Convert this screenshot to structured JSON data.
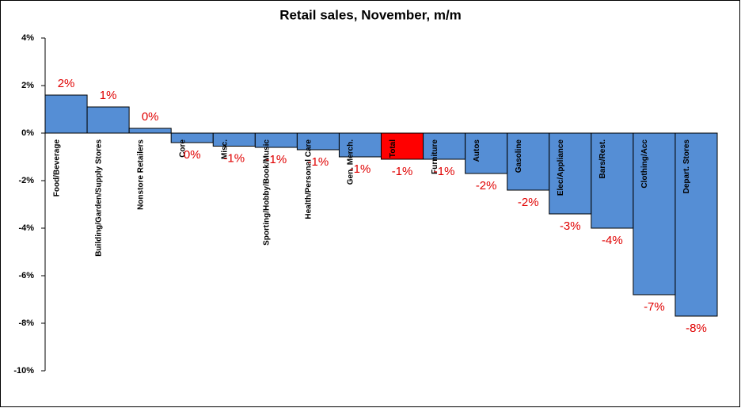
{
  "chart_data": {
    "type": "bar",
    "title": "Retail sales, November, m/m",
    "categories": [
      "Food/Beverage",
      "Building/Garden/Supply Stores",
      "Nonstore Retailers",
      "Core",
      "Misc.",
      "Sporting/Hobby/Book/Music",
      "Health/Personal Care",
      "Gen. Merch.",
      "Total",
      "Furniture",
      "Autos",
      "Gasoline",
      "Elec/Appliance",
      "Bars/Rest.",
      "Clothing/Acc",
      "Depart. Stores"
    ],
    "values": [
      1.6,
      1.1,
      0.2,
      -0.4,
      -0.55,
      -0.6,
      -0.7,
      -1.0,
      -1.1,
      -1.1,
      -1.7,
      -2.4,
      -3.4,
      -4.0,
      -6.8,
      -7.7
    ],
    "value_labels": [
      "2%",
      "1%",
      "0%",
      "0%",
      "-1%",
      "-1%",
      "-1%",
      "-1%",
      "-1%",
      "-1%",
      "-2%",
      "-2%",
      "-3%",
      "-4%",
      "-7%",
      "-8%"
    ],
    "colors": [
      "#558ed5",
      "#558ed5",
      "#558ed5",
      "#558ed5",
      "#558ed5",
      "#558ed5",
      "#558ed5",
      "#558ed5",
      "#ff0000",
      "#558ed5",
      "#558ed5",
      "#558ed5",
      "#558ed5",
      "#558ed5",
      "#558ed5",
      "#558ed5"
    ],
    "ylim": [
      -10,
      4
    ],
    "yticks": [
      {
        "value": -10,
        "label": "-10%"
      },
      {
        "value": -8,
        "label": "-8%"
      },
      {
        "value": -6,
        "label": "-6%"
      },
      {
        "value": -4,
        "label": "-4%"
      },
      {
        "value": -2,
        "label": "-2%"
      },
      {
        "value": 0,
        "label": "0%"
      },
      {
        "value": 2,
        "label": "2%"
      },
      {
        "value": 4,
        "label": "4%"
      }
    ],
    "grid": false
  }
}
